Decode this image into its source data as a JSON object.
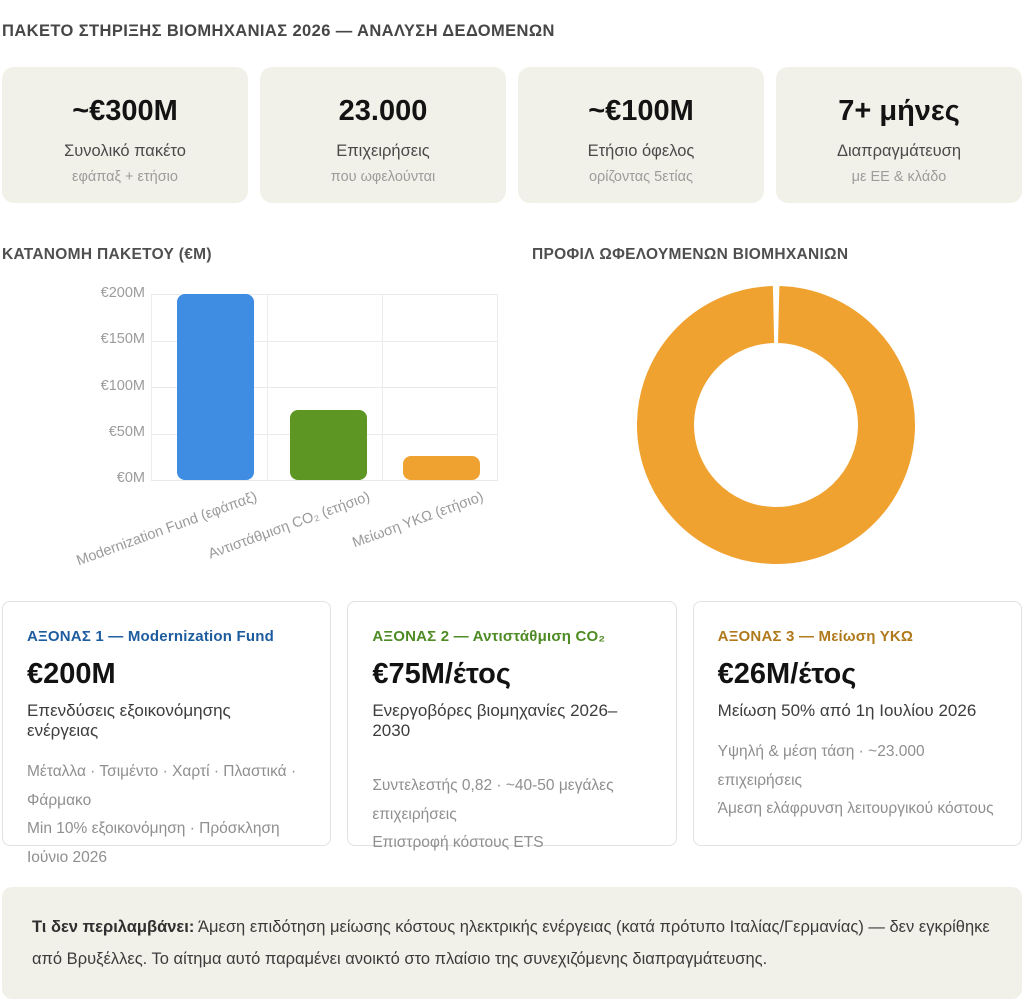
{
  "page_title": "ΠΑΚΕΤΟ ΣΤΗΡΙΞΗΣ ΒΙΟΜΗΧΑΝΙΑΣ 2026 — ΑΝΑΛΥΣΗ ΔΕΔΟΜΕΝΩΝ",
  "colors": {
    "card_beige": "#f2f1e9",
    "bar_blue": "#3e8de3",
    "bar_green": "#5d9623",
    "bar_orange": "#f0a231",
    "axis1_header": "#1d5c9e",
    "axis2_header": "#4e8b24",
    "axis3_header": "#b0791c"
  },
  "stats": [
    {
      "value": "~€300M",
      "label": "Συνολικό πακέτο",
      "sublabel": "εφάπαξ + ετήσιο"
    },
    {
      "value": "23.000",
      "label": "Επιχειρήσεις",
      "sublabel": "που ωφελούνται"
    },
    {
      "value": "~€100M",
      "label": "Ετήσιο όφελος",
      "sublabel": "ορίζοντας 5ετίας"
    },
    {
      "value": "7+ μήνες",
      "label": "Διαπραγμάτευση",
      "sublabel": "με ΕΕ & κλάδο"
    }
  ],
  "chart_data": [
    {
      "type": "bar",
      "title": "ΚΑΤΑΝΟΜΗ ΠΑΚΕΤΟΥ (€M)",
      "categories": [
        "Modernization Fund (εφάπαξ)",
        "Αντιστάθμιση CO₂ (ετήσιο)",
        "Μείωση ΥΚΩ (ετήσιο)"
      ],
      "values": [
        200,
        75,
        26
      ],
      "colors": [
        "#3e8de3",
        "#5d9623",
        "#f0a231"
      ],
      "xlabel": "",
      "ylabel": "€M",
      "ylim": [
        0,
        200
      ],
      "ytick_values": [
        200,
        150,
        100,
        50,
        0
      ],
      "ytick_labels": [
        "€200M",
        "€150M",
        "€100M",
        "€50M",
        "€0M"
      ],
      "grid": true,
      "legend": "none"
    },
    {
      "type": "donut",
      "title": "ΠΡΟΦΙΛ ΩΦΕΛΟΥΜΕΝΩΝ ΒΙΟΜΗΧΑΝΙΩΝ",
      "values": [
        100
      ],
      "colors": [
        "#f0a231"
      ],
      "legend": "none",
      "cutout_ratio": 0.59,
      "gap_at_top": true
    }
  ],
  "sections": {
    "bar_title": "ΚΑΤΑΝΟΜΗ ΠΑΚΕΤΟΥ (€M)",
    "donut_title": "ΠΡΟΦΙΛ ΩΦΕΛΟΥΜΕΝΩΝ ΒΙΟΜΗΧΑΝΙΩΝ"
  },
  "axis_cards": [
    {
      "header": "ΑΞΟΝΑΣ 1 — Modernization Fund",
      "header_color": "#1d5c9e",
      "value": "€200M",
      "subtitle": "Επενδύσεις εξοικονόμησης ενέργειας",
      "details": [
        "Μέταλλα · Τσιμέντο · Χαρτί · Πλαστικά · Φάρμακο",
        "Min 10% εξοικονόμηση · Πρόσκληση Ιούνιο 2026"
      ]
    },
    {
      "header": "ΑΞΟΝΑΣ 2 — Αντιστάθμιση CO₂",
      "header_color": "#4e8b24",
      "value": "€75M/έτος",
      "subtitle": "Ενεργοβόρες βιομηχανίες 2026–2030",
      "details": [
        "Συντελεστής 0,82 · ~40-50 μεγάλες επιχειρήσεις",
        "Επιστροφή κόστους ETS"
      ]
    },
    {
      "header": "ΑΞΟΝΑΣ 3 — Μείωση ΥΚΩ",
      "header_color": "#b0791c",
      "value": "€26M/έτος",
      "subtitle": "Μείωση 50% από 1η Ιουλίου 2026",
      "details": [
        "Υψηλή & μέση τάση · ~23.000 επιχειρήσεις",
        "Άμεση ελάφρυνση λειτουργικού κόστους"
      ]
    }
  ],
  "note": {
    "bold": "Τι δεν περιλαμβάνει:",
    "text": " Άμεση επιδότηση μείωσης κόστους ηλεκτρικής ενέργειας (κατά πρότυπο Ιταλίας/Γερμανίας) — δεν εγκρίθηκε από Βρυξέλλες. Το αίτημα αυτό παραμένει ανοικτό στο πλαίσιο της συνεχιζόμενης διαπραγμάτευσης."
  }
}
